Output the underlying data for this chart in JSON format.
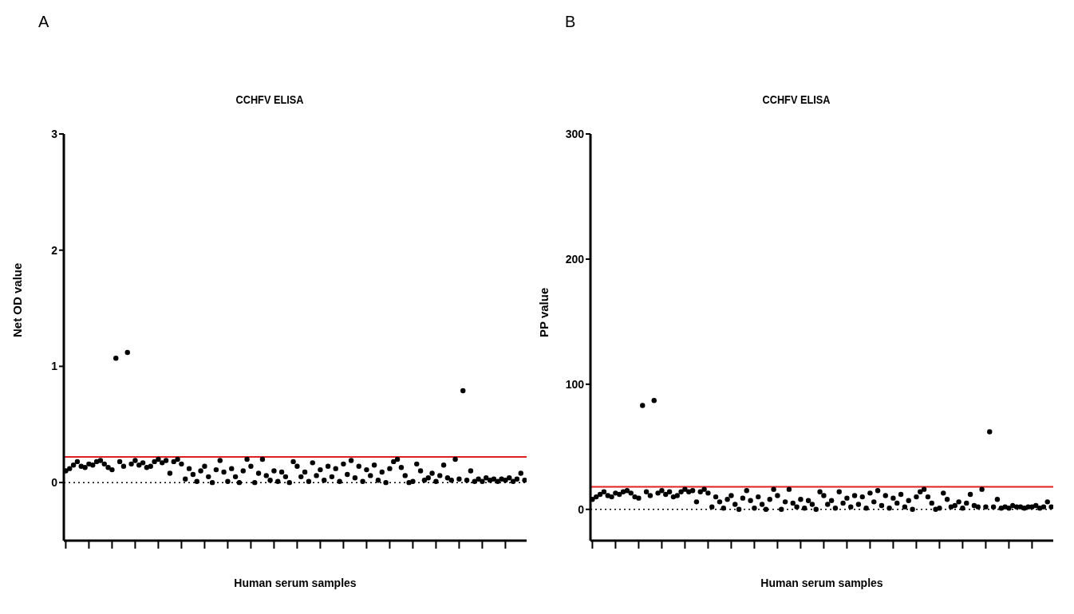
{
  "chart_data": [
    {
      "type": "scatter",
      "title": "CCHFV ELISA",
      "xlabel": "Human serum samples",
      "ylabel": "Net OD value",
      "annotations": [
        "A"
      ],
      "color": "#000000",
      "marker": "circle",
      "grid": false,
      "tick_labels": "y",
      "categories": [
        null,
        null,
        null,
        null,
        null,
        null,
        null,
        null,
        null,
        null,
        null,
        null,
        null,
        null,
        null,
        null,
        null,
        null,
        null,
        null,
        null,
        null,
        null,
        null,
        null,
        null,
        null,
        null,
        null,
        null,
        null,
        null,
        null,
        null,
        null,
        null,
        null,
        null,
        null,
        null,
        null,
        null,
        null,
        null,
        null,
        null,
        null,
        null,
        null,
        null,
        null,
        null,
        null,
        null,
        null,
        null,
        null,
        null,
        null,
        null,
        null,
        null,
        null,
        null,
        null,
        null,
        null,
        null,
        null,
        null,
        null,
        null,
        null,
        null,
        null,
        null,
        null,
        null,
        null,
        null,
        null,
        null,
        null,
        null,
        null,
        null,
        null,
        null,
        null,
        null,
        null,
        null,
        null,
        null,
        null,
        null,
        null,
        null,
        null,
        null,
        null,
        null,
        null,
        null,
        null,
        null,
        null,
        null,
        null,
        null,
        null,
        null,
        null,
        null,
        null,
        null,
        null,
        null,
        null,
        null
      ],
      "values": [
        0.1,
        0.12,
        0.15,
        0.18,
        0.14,
        0.13,
        0.16,
        0.15,
        0.18,
        0.19,
        0.16,
        0.13,
        0.11,
        1.07,
        0.18,
        0.14,
        1.12,
        0.16,
        0.19,
        0.15,
        0.17,
        0.13,
        0.14,
        0.18,
        0.2,
        0.17,
        0.19,
        0.08,
        0.18,
        0.2,
        0.16,
        0.03,
        0.12,
        0.07,
        0.01,
        0.1,
        0.14,
        0.05,
        0.0,
        0.11,
        0.19,
        0.09,
        0.01,
        0.12,
        0.05,
        0.0,
        0.1,
        0.2,
        0.14,
        0.0,
        0.08,
        0.2,
        0.06,
        0.02,
        0.1,
        0.01,
        0.09,
        0.05,
        0.0,
        0.18,
        0.14,
        0.05,
        0.09,
        0.01,
        0.17,
        0.06,
        0.11,
        0.02,
        0.14,
        0.05,
        0.12,
        0.01,
        0.16,
        0.07,
        0.19,
        0.04,
        0.14,
        0.01,
        0.11,
        0.06,
        0.15,
        0.02,
        0.09,
        0.0,
        0.12,
        0.18,
        0.2,
        0.13,
        0.06,
        0.0,
        0.01,
        0.16,
        0.1,
        0.02,
        0.04,
        0.08,
        0.01,
        0.06,
        0.15,
        0.04,
        0.02,
        0.2,
        0.03,
        0.79,
        0.02,
        0.1,
        0.01,
        0.03,
        0.01,
        0.04,
        0.02,
        0.03,
        0.01,
        0.03,
        0.02,
        0.04,
        0.01,
        0.03,
        0.08,
        0.02
      ],
      "ylim": [
        -0.5,
        3
      ],
      "yticks": [
        0,
        1,
        2,
        3
      ],
      "ref_lines": [
        {
          "axis": "y",
          "value": 0.22,
          "color": "#e02020",
          "line_style": "solid"
        },
        {
          "axis": "y",
          "value": 0,
          "color": "#000000",
          "line_style": "dotted"
        }
      ]
    },
    {
      "type": "scatter",
      "title": "CCHFV ELISA",
      "xlabel": "Human serum samples",
      "ylabel": "PP value",
      "annotations": [
        "B"
      ],
      "color": "#000000",
      "marker": "circle",
      "grid": false,
      "tick_labels": "y",
      "categories": [
        null,
        null,
        null,
        null,
        null,
        null,
        null,
        null,
        null,
        null,
        null,
        null,
        null,
        null,
        null,
        null,
        null,
        null,
        null,
        null,
        null,
        null,
        null,
        null,
        null,
        null,
        null,
        null,
        null,
        null,
        null,
        null,
        null,
        null,
        null,
        null,
        null,
        null,
        null,
        null,
        null,
        null,
        null,
        null,
        null,
        null,
        null,
        null,
        null,
        null,
        null,
        null,
        null,
        null,
        null,
        null,
        null,
        null,
        null,
        null,
        null,
        null,
        null,
        null,
        null,
        null,
        null,
        null,
        null,
        null,
        null,
        null,
        null,
        null,
        null,
        null,
        null,
        null,
        null,
        null,
        null,
        null,
        null,
        null,
        null,
        null,
        null,
        null,
        null,
        null,
        null,
        null,
        null,
        null,
        null,
        null,
        null,
        null,
        null,
        null,
        null,
        null,
        null,
        null,
        null,
        null,
        null,
        null,
        null,
        null,
        null,
        null,
        null,
        null,
        null,
        null,
        null,
        null,
        null,
        null
      ],
      "values": [
        8,
        10,
        12,
        14,
        11,
        10,
        13,
        12,
        14,
        15,
        13,
        10,
        9,
        83,
        14,
        11,
        87,
        13,
        15,
        12,
        14,
        10,
        11,
        14,
        16,
        14,
        15,
        6,
        14,
        16,
        13,
        2,
        10,
        6,
        1,
        8,
        11,
        4,
        0,
        9,
        15,
        7,
        1,
        10,
        4,
        0,
        8,
        16,
        11,
        0,
        6,
        16,
        5,
        2,
        8,
        1,
        7,
        4,
        0,
        14,
        11,
        4,
        7,
        1,
        14,
        5,
        9,
        2,
        11,
        4,
        10,
        1,
        13,
        6,
        15,
        3,
        11,
        1,
        9,
        5,
        12,
        2,
        7,
        0,
        10,
        14,
        16,
        10,
        5,
        0,
        1,
        13,
        8,
        2,
        3,
        6,
        1,
        5,
        12,
        3,
        2,
        16,
        2,
        62,
        2,
        8,
        1,
        2,
        1,
        3,
        2,
        2,
        1,
        2,
        2,
        3,
        1,
        2,
        6,
        2
      ],
      "ylim": [
        -25,
        300
      ],
      "yticks": [
        0,
        100,
        200,
        300
      ],
      "ref_lines": [
        {
          "axis": "y",
          "value": 18,
          "color": "#e02020",
          "line_style": "solid"
        },
        {
          "axis": "y",
          "value": 0,
          "color": "#000000",
          "line_style": "dotted"
        }
      ]
    }
  ]
}
